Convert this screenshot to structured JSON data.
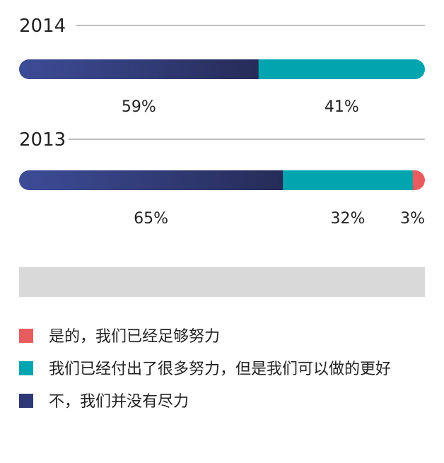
{
  "chart_data": {
    "type": "bar",
    "orientation": "horizontal-stacked",
    "unit": "%",
    "categories": [
      "2014",
      "2013"
    ],
    "series": [
      {
        "name": "不，我们并没有尽力",
        "color": "#2e3874",
        "values": [
          59,
          65
        ],
        "labels": [
          "59%",
          "65%"
        ]
      },
      {
        "name": "我们已经付出了很多努力，但是我们可以做的更好",
        "color": "#00a5b0",
        "values": [
          41,
          32
        ],
        "labels": [
          "41%",
          "32%"
        ]
      },
      {
        "name": "是的，我们已经足够努力",
        "color": "#e85c5f",
        "values": [
          0,
          3
        ],
        "labels": [
          "",
          "3%"
        ]
      }
    ],
    "legend": [
      {
        "label": "是的，我们已经足够努力",
        "color": "#e85c5f"
      },
      {
        "label": "我们已经付出了很多努力，但是我们可以做的更好",
        "color": "#00a5b0"
      },
      {
        "label": "不，我们并没有尽力",
        "color": "#2e3874"
      }
    ],
    "legend_position": "bottom"
  }
}
